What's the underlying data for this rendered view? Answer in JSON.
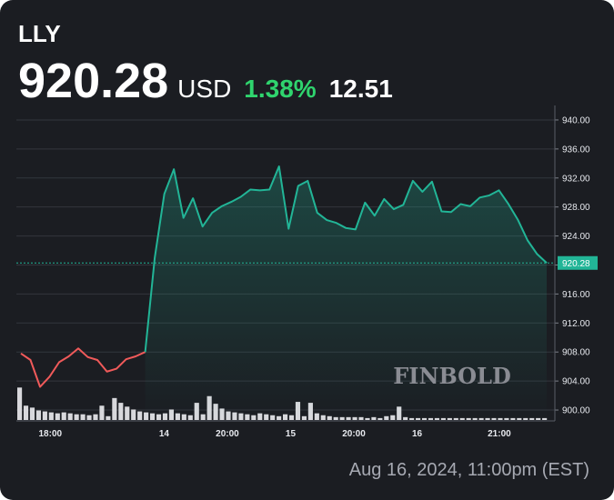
{
  "header": {
    "ticker": "LLY",
    "price": "920.28",
    "currency": "USD",
    "change_percent": "1.38%",
    "change_value": "12.51"
  },
  "footer": {
    "timestamp": "Aug 16, 2024, 11:00pm (EST)"
  },
  "watermark": "FINBOLD",
  "colors": {
    "background": "#1b1d22",
    "up_line": "#22b597",
    "down_line": "#f05a5a",
    "positive_text": "#2fd46e",
    "volume_bar": "#d8d8dc",
    "grid": "#33363d",
    "last_price_tag": "#22b597"
  },
  "chart_data": {
    "type": "line",
    "title": "",
    "xlabel": "",
    "ylabel": "",
    "ylim": [
      898.5,
      942
    ],
    "yticks": [
      900,
      904,
      908,
      912,
      916,
      920,
      924,
      928,
      932,
      936,
      940
    ],
    "ytick_labels": [
      "900.00",
      "904.00",
      "908.00",
      "912.00",
      "916.00",
      "920.00",
      "924.00",
      "928.00",
      "932.00",
      "936.00",
      "940.00"
    ],
    "xtick_labels": [
      {
        "label": "18:00",
        "index": 4
      },
      {
        "label": "14",
        "index": 22
      },
      {
        "label": "20:00",
        "index": 32
      },
      {
        "label": "15",
        "index": 42
      },
      {
        "label": "20:00",
        "index": 52
      },
      {
        "label": "16",
        "index": 62
      },
      {
        "label": "21:00",
        "index": 75
      }
    ],
    "last_price": 920.28,
    "last_price_label": "920.28",
    "grid": true,
    "series": [
      {
        "values": [
          907.8,
          906.9,
          903.2,
          904.6,
          906.6,
          907.4,
          908.5,
          907.3,
          906.9,
          905.3,
          905.7,
          907.0,
          907.4,
          908.0,
          921.0,
          929.8,
          933.2,
          926.5,
          929.2,
          925.3,
          927.2,
          928.1,
          928.7,
          929.4,
          930.4,
          930.3,
          930.4,
          933.6,
          925.0,
          930.9,
          931.6,
          927.2,
          926.2,
          925.8,
          925.1,
          924.9,
          928.6,
          926.8,
          929.1,
          927.7,
          928.3,
          931.6,
          930.1,
          931.5,
          927.4,
          927.3,
          928.4,
          928.1,
          929.3,
          929.6,
          930.3,
          928.4,
          926.2,
          923.4,
          921.5,
          920.28
        ],
        "down_segment_end_index": 13
      }
    ],
    "volume": {
      "x_indices": [
        0,
        1,
        2,
        3,
        4,
        5,
        6,
        7,
        8,
        9,
        10,
        11,
        12,
        13,
        14,
        15,
        16,
        17,
        18,
        19,
        20,
        21,
        22,
        23,
        24,
        25,
        26,
        27,
        28,
        29,
        30,
        31,
        32,
        33,
        34,
        35,
        36,
        37,
        38,
        39,
        40,
        41,
        42,
        43,
        44,
        45,
        46,
        47,
        48,
        49,
        50,
        51,
        52,
        53,
        54,
        55,
        56,
        57,
        58,
        59,
        60,
        61,
        62,
        63,
        64,
        65,
        66,
        67,
        68,
        69,
        70,
        71,
        72,
        73,
        74,
        75,
        76,
        77,
        78,
        79,
        80,
        81,
        82,
        83
      ],
      "values": [
        34,
        15,
        13,
        10,
        9,
        8,
        7,
        8,
        7,
        6,
        6,
        5,
        6,
        15,
        4,
        23,
        18,
        14,
        11,
        9,
        8,
        7,
        6,
        7,
        11,
        7,
        6,
        5,
        18,
        6,
        25,
        17,
        12,
        9,
        8,
        7,
        6,
        5,
        7,
        6,
        5,
        4,
        6,
        5,
        19,
        4,
        18,
        7,
        5,
        4,
        3,
        3,
        3,
        3,
        3,
        2,
        3,
        2,
        4,
        5,
        14,
        3,
        2,
        2,
        2,
        2,
        2,
        2,
        2,
        2,
        2,
        2,
        2,
        2,
        2,
        2,
        2,
        2,
        2,
        2,
        2,
        2,
        2,
        2
      ]
    }
  }
}
